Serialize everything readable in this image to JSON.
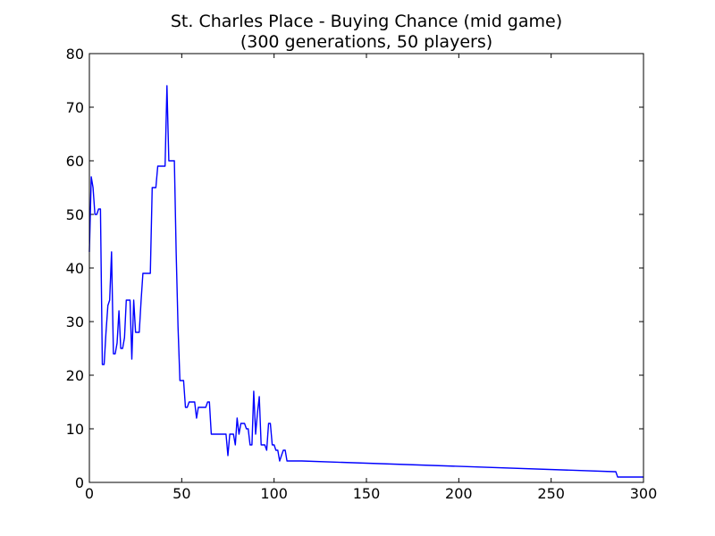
{
  "chart_data": {
    "type": "line",
    "title": "St. Charles Place - Buying Chance (mid game)",
    "subtitle": "(300 generations, 50 players)",
    "xlabel": "",
    "ylabel": "",
    "xlim": [
      0,
      300
    ],
    "ylim": [
      0,
      80
    ],
    "xticks": [
      0,
      50,
      100,
      150,
      200,
      250,
      300
    ],
    "yticks": [
      0,
      10,
      20,
      30,
      40,
      50,
      60,
      70,
      80
    ],
    "grid": false,
    "line_color": "#0000ff",
    "series": [
      {
        "x": [
          0,
          1,
          2,
          3,
          4,
          5,
          6,
          7,
          8,
          9,
          10,
          11,
          12,
          13,
          14,
          15,
          16,
          17,
          18,
          19,
          20,
          21,
          22,
          23,
          24,
          25,
          26,
          27,
          28,
          29,
          30,
          31,
          32,
          33,
          34,
          35,
          36,
          37,
          38,
          39,
          40,
          41,
          42,
          43,
          44,
          45,
          46,
          47,
          48,
          49,
          50,
          51,
          52,
          53,
          54,
          55,
          56,
          57,
          58,
          59,
          60,
          61,
          62,
          63,
          64,
          65,
          66,
          67,
          68,
          69,
          70,
          71,
          72,
          73,
          74,
          75,
          76,
          77,
          78,
          79,
          80,
          81,
          82,
          83,
          84,
          85,
          86,
          87,
          88,
          89,
          90,
          91,
          92,
          93,
          94,
          95,
          96,
          97,
          98,
          99,
          100,
          101,
          102,
          103,
          104,
          105,
          106,
          107,
          108,
          109,
          110,
          111,
          112,
          113,
          114,
          115,
          284,
          285,
          286,
          287,
          300
        ],
        "y": [
          43,
          57,
          55,
          50,
          50,
          51,
          51,
          22,
          22,
          28,
          33,
          34,
          43,
          24,
          24,
          26,
          32,
          25,
          25,
          27,
          34,
          34,
          34,
          23,
          34,
          28,
          28,
          28,
          34,
          39,
          39,
          39,
          39,
          39,
          55,
          55,
          55,
          59,
          59,
          59,
          59,
          59,
          74,
          60,
          60,
          60,
          60,
          43,
          29,
          19,
          19,
          19,
          14,
          14,
          15,
          15,
          15,
          15,
          12,
          14,
          14,
          14,
          14,
          14,
          15,
          15,
          9,
          9,
          9,
          9,
          9,
          9,
          9,
          9,
          9,
          5,
          9,
          9,
          9,
          7,
          12,
          9,
          11,
          11,
          11,
          10,
          10,
          7,
          7,
          17,
          9,
          13,
          16,
          7,
          7,
          7,
          6,
          11,
          11,
          7,
          7,
          6,
          6,
          4,
          5,
          6,
          6,
          4,
          4,
          4,
          4,
          4,
          4,
          4,
          4,
          4,
          2,
          2,
          1,
          1,
          1
        ]
      }
    ]
  }
}
